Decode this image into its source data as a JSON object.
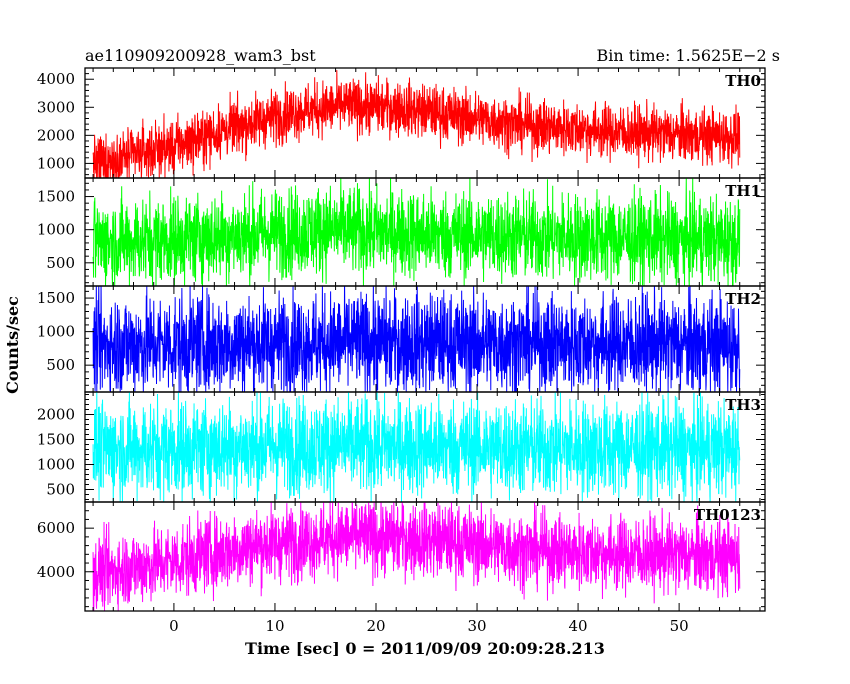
{
  "chart_data": {
    "type": "line",
    "title": "ae110909200928_wam3_bst",
    "subtitle": "Bin time: 1.5625E−2 s",
    "xlabel": "Time [sec] 0 = 2011/09/09 20:09:28.213",
    "ylabel": "Counts/sec",
    "xlim": [
      -8.8,
      58.5
    ],
    "x_data_range": [
      -8,
      56
    ],
    "x_ticks": [
      0,
      10,
      20,
      30,
      40,
      50
    ],
    "grid": false,
    "panels": [
      {
        "name": "TH0",
        "color": "#ff0000",
        "ylim": [
          480,
          4400
        ],
        "y_ticks": [
          1000,
          2000,
          3000,
          4000
        ],
        "profile": [
          {
            "x": -8,
            "y": 1000
          },
          {
            "x": 0,
            "y": 1600
          },
          {
            "x": 7,
            "y": 2400
          },
          {
            "x": 12,
            "y": 2850
          },
          {
            "x": 17,
            "y": 3050
          },
          {
            "x": 22,
            "y": 3000
          },
          {
            "x": 28,
            "y": 2700
          },
          {
            "x": 35,
            "y": 2350
          },
          {
            "x": 45,
            "y": 2100
          },
          {
            "x": 56,
            "y": 1950
          }
        ],
        "noise": 480
      },
      {
        "name": "TH1",
        "color": "#00ff00",
        "ylim": [
          150,
          1780
        ],
        "y_ticks": [
          500,
          1000,
          1500
        ],
        "profile": [
          {
            "x": -8,
            "y": 800
          },
          {
            "x": 5,
            "y": 900
          },
          {
            "x": 15,
            "y": 1000
          },
          {
            "x": 25,
            "y": 930
          },
          {
            "x": 40,
            "y": 880
          },
          {
            "x": 56,
            "y": 830
          }
        ],
        "noise": 330
      },
      {
        "name": "TH2",
        "color": "#0000ff",
        "ylim": [
          100,
          1680
        ],
        "y_ticks": [
          500,
          1000,
          1500
        ],
        "profile": [
          {
            "x": -8,
            "y": 800
          },
          {
            "x": 20,
            "y": 840
          },
          {
            "x": 56,
            "y": 800
          }
        ],
        "noise": 370
      },
      {
        "name": "TH3",
        "color": "#00ffff",
        "ylim": [
          250,
          2450
        ],
        "y_ticks": [
          500,
          1000,
          1500,
          2000
        ],
        "profile": [
          {
            "x": -8,
            "y": 1300
          },
          {
            "x": 15,
            "y": 1380
          },
          {
            "x": 35,
            "y": 1330
          },
          {
            "x": 56,
            "y": 1300
          }
        ],
        "noise": 480
      },
      {
        "name": "TH0123",
        "color": "#ff00ff",
        "ylim": [
          2200,
          7200
        ],
        "y_ticks": [
          4000,
          6000
        ],
        "profile": [
          {
            "x": -8,
            "y": 3900
          },
          {
            "x": 0,
            "y": 4500
          },
          {
            "x": 8,
            "y": 5200
          },
          {
            "x": 17,
            "y": 5600
          },
          {
            "x": 25,
            "y": 5500
          },
          {
            "x": 35,
            "y": 5000
          },
          {
            "x": 45,
            "y": 4800
          },
          {
            "x": 56,
            "y": 4700
          }
        ],
        "noise": 850
      }
    ]
  }
}
